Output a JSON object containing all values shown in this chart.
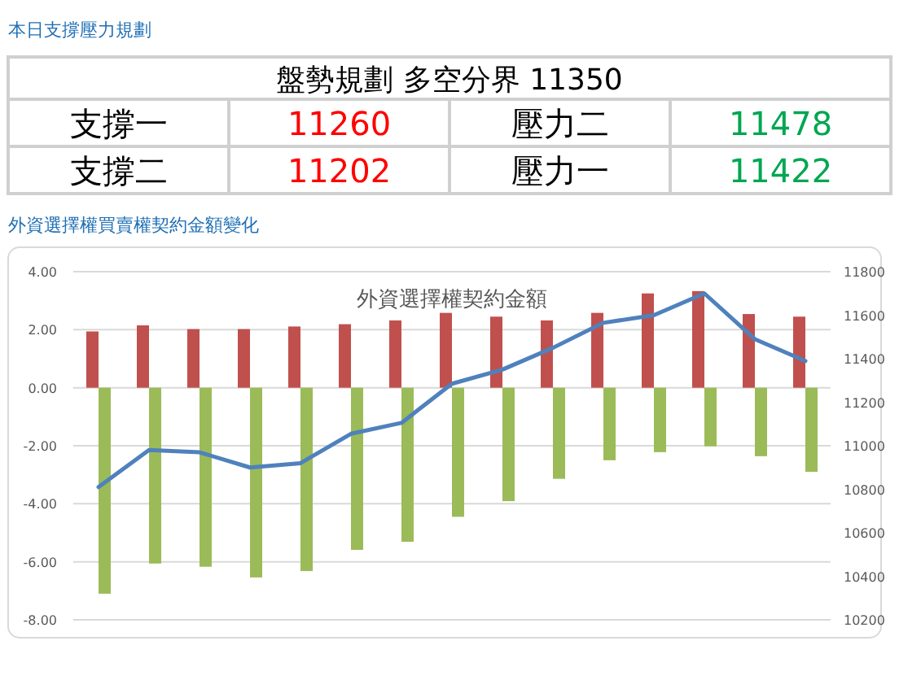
{
  "chart_data": [
    {
      "type": "other",
      "title": "本日支撐壓力規劃",
      "annotations": [
        "盤勢規劃 多空分界 11350",
        "支撐一",
        "11260",
        "壓力二",
        "11478",
        "支撐二",
        "11202",
        "壓力一",
        "11422"
      ]
    },
    {
      "type": "bar",
      "title": "外資選擇權買賣權契約金額變化",
      "subtitle": "外資選擇權契約金額",
      "categories": [
        null,
        null,
        null,
        null,
        null,
        null,
        null,
        null,
        null,
        null,
        null,
        null,
        null,
        null,
        null
      ],
      "series": [
        {
          "type": "bar",
          "color": "#c0504d",
          "values": [
            1.94,
            2.15,
            2.02,
            2.02,
            2.11,
            2.19,
            2.32,
            2.58,
            2.45,
            2.32,
            2.58,
            3.25,
            3.33,
            2.54,
            2.45
          ]
        },
        {
          "type": "bar",
          "color": "#9bbb59",
          "values": [
            -7.1,
            -6.06,
            -6.17,
            -6.54,
            -6.32,
            -5.59,
            -5.31,
            -4.45,
            -3.91,
            -3.14,
            -2.5,
            -2.22,
            -2.02,
            -2.36,
            -2.9
          ]
        },
        {
          "type": "line",
          "axis": "y2",
          "color": "#4f81bd",
          "values": [
            10810,
            10980,
            10970,
            10900,
            10920,
            11055,
            11105,
            11285,
            11350,
            11450,
            11565,
            11600,
            11700,
            11490,
            11390
          ]
        }
      ],
      "ylim": [
        -8,
        4
      ],
      "yticks": [
        {
          "value": -8,
          "label": "-8.00"
        },
        {
          "value": -6,
          "label": "-6.00"
        },
        {
          "value": -4,
          "label": "-4.00"
        },
        {
          "value": -2,
          "label": "-2.00"
        },
        {
          "value": 0,
          "label": "0.00"
        },
        {
          "value": 2,
          "label": "2.00"
        },
        {
          "value": 4,
          "label": "4.00"
        }
      ],
      "y2lim": [
        10200,
        11800
      ],
      "y2ticks": [
        10200,
        10400,
        10600,
        10800,
        11000,
        11200,
        11400,
        11600,
        11800
      ],
      "grid": "y"
    }
  ]
}
